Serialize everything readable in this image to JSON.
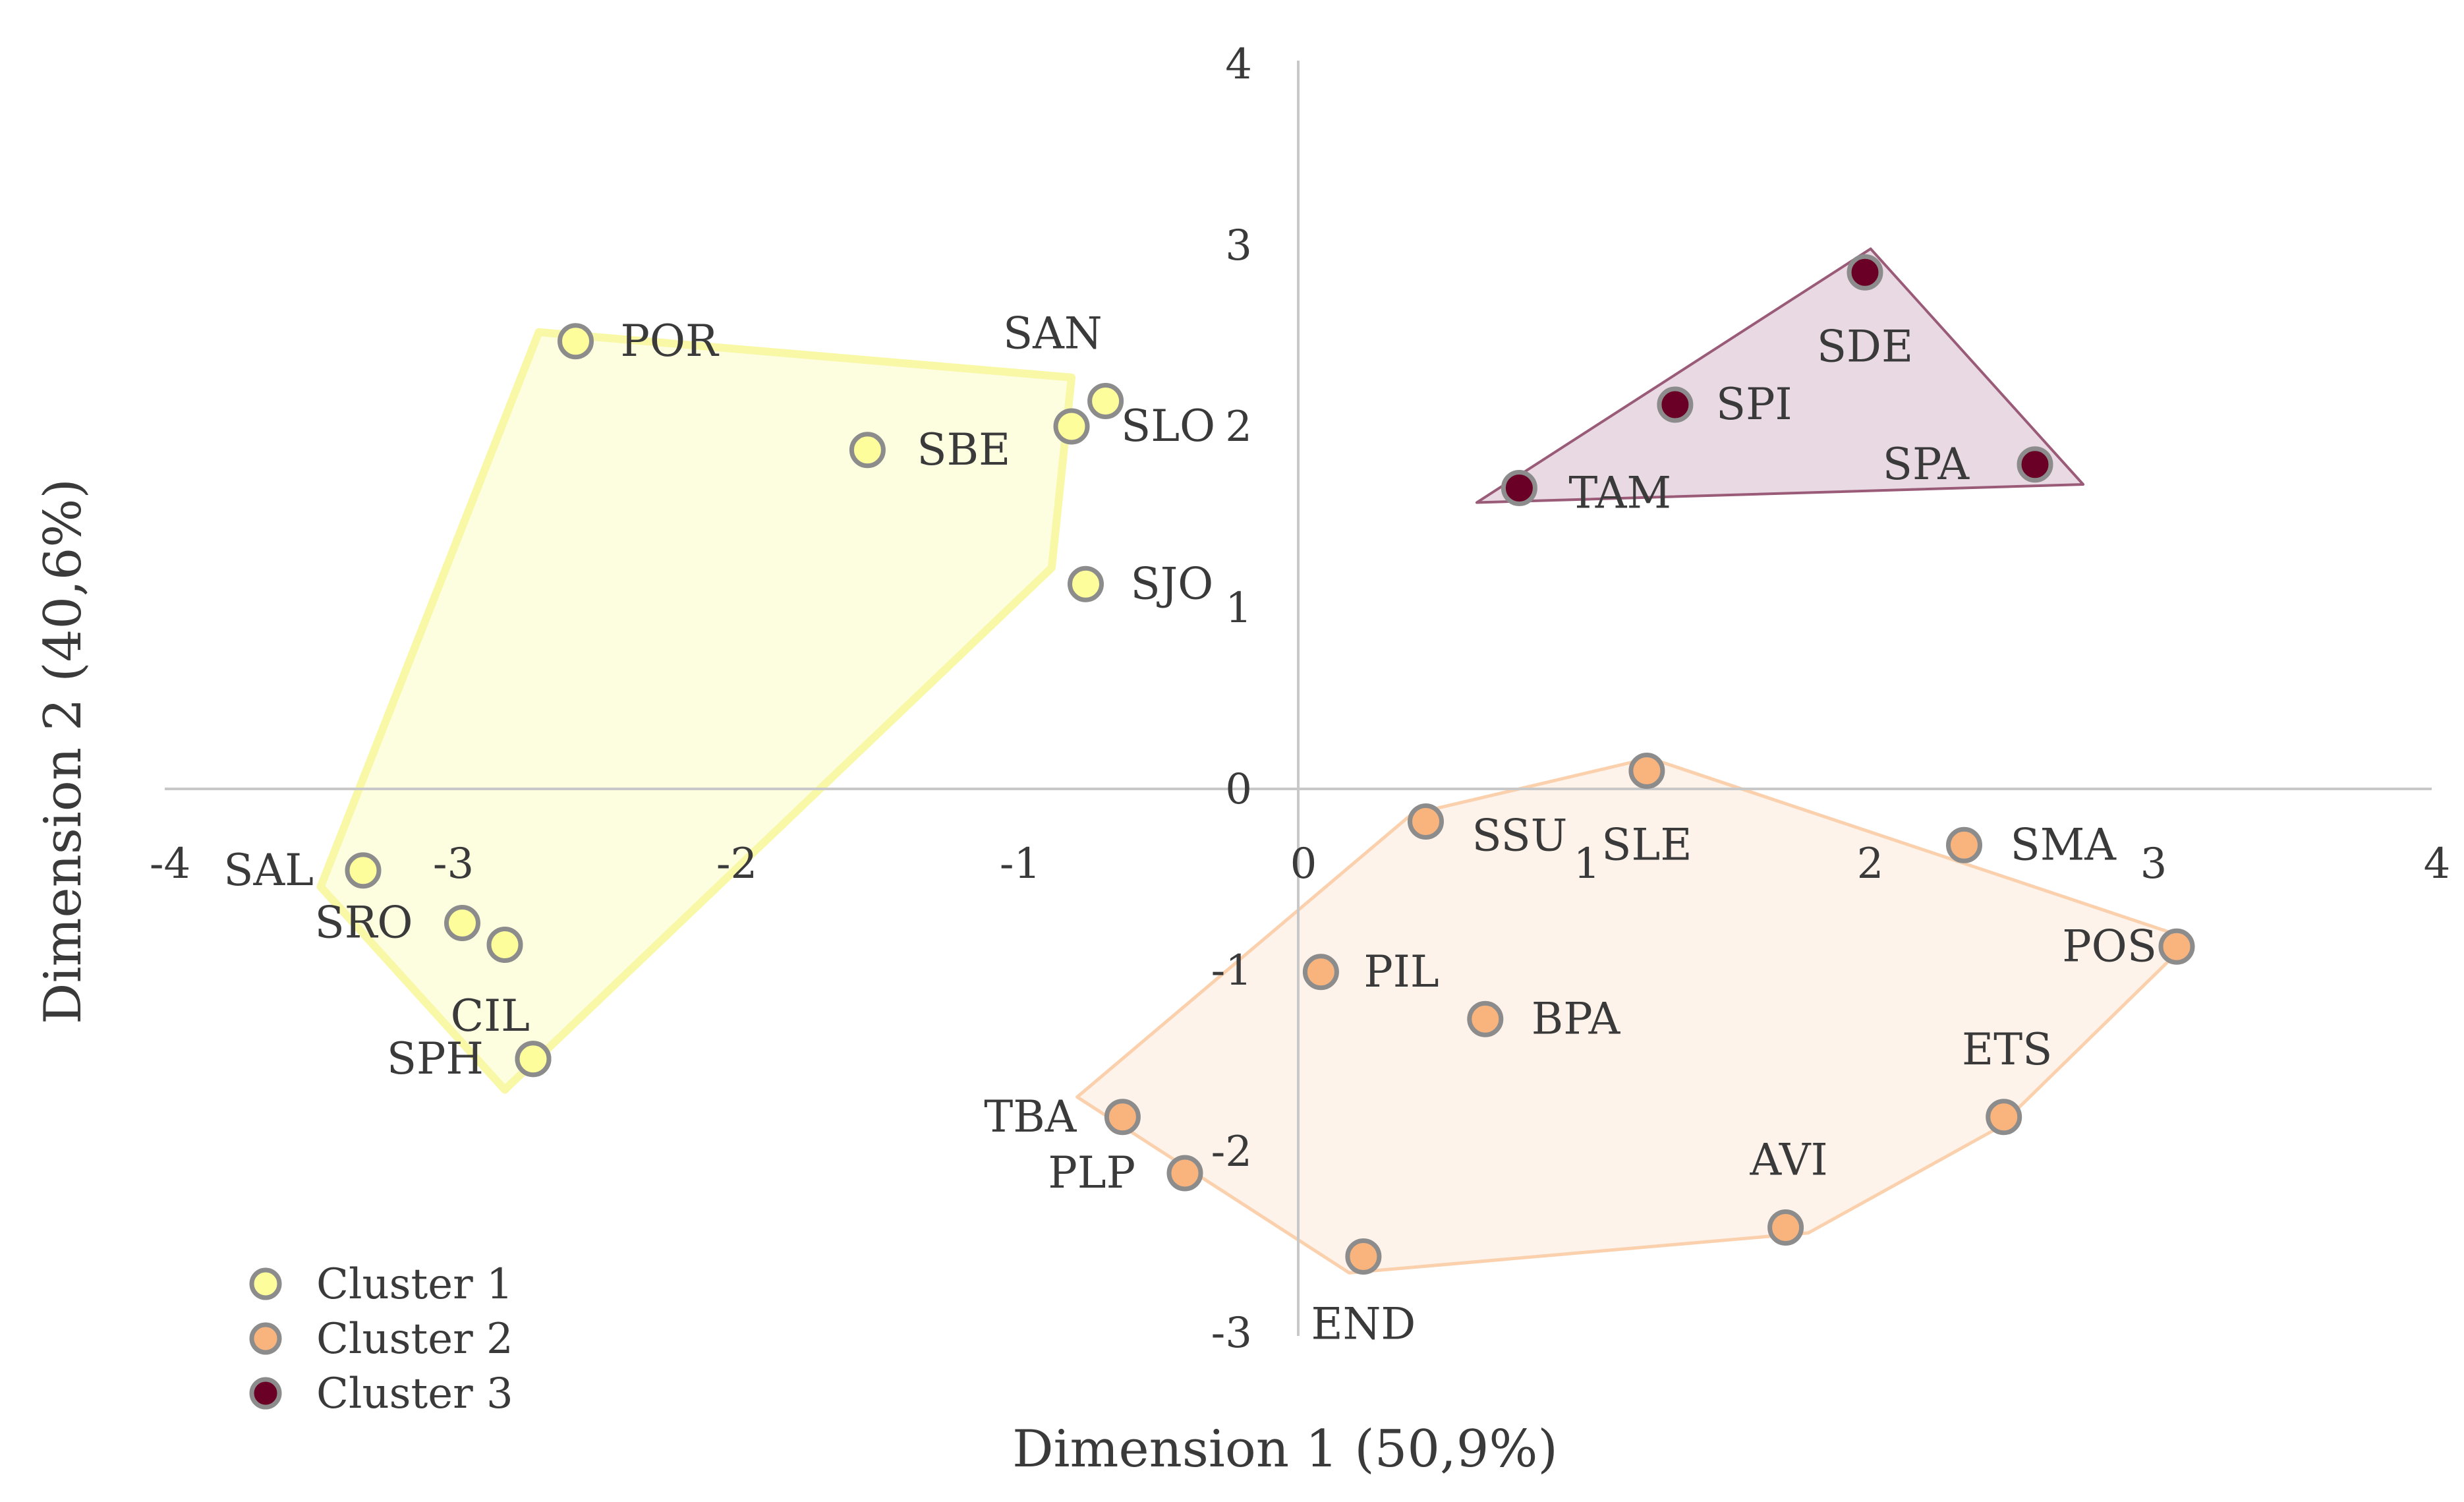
{
  "chart_data": {
    "type": "scatter",
    "title": "",
    "xlabel": "Dimension 1 (50,9%)",
    "ylabel": "Dimension 2 (40,6%)",
    "xlim": [
      -4,
      4
    ],
    "ylim": [
      -3,
      4
    ],
    "x_ticks": [
      "-4",
      "-3",
      "-2",
      "-1",
      "0",
      "1",
      "2",
      "3",
      "4"
    ],
    "y_ticks": [
      "-3",
      "-2",
      "-1",
      "0",
      "1",
      "2",
      "3",
      "4"
    ],
    "grid": false,
    "legend_position": "bottom-left",
    "colors": {
      "cluster1_fill": "#fdfd9c",
      "cluster1_hull": "#f8f8a6",
      "cluster2_fill": "#f9b47e",
      "cluster2_hull": "#fbd0ad",
      "cluster3_fill": "#6b0026",
      "cluster3_hull": "#e3cfdc",
      "marker_edge": "#8c8c8c"
    },
    "series": [
      {
        "name": "Cluster 1",
        "points": [
          {
            "label": "POR",
            "x": -2.55,
            "y": 2.47
          },
          {
            "label": "SAN",
            "x": -0.68,
            "y": 2.14
          },
          {
            "label": "SLO",
            "x": -0.8,
            "y": 2.0
          },
          {
            "label": "SBE",
            "x": -1.52,
            "y": 1.87
          },
          {
            "label": "SJO",
            "x": -0.75,
            "y": 1.13
          },
          {
            "label": "SAL",
            "x": -3.3,
            "y": -0.45
          },
          {
            "label": "SRO",
            "x": -2.95,
            "y": -0.74
          },
          {
            "label": "",
            "x": -2.8,
            "y": -0.86
          },
          {
            "label": "CIL",
            "x": -2.7,
            "y": -1.49
          },
          {
            "label": "SPH",
            "x": -2.7,
            "y": -1.49
          }
        ]
      },
      {
        "name": "Cluster 2",
        "points": [
          {
            "label": "SLE",
            "x": 1.23,
            "y": 0.1
          },
          {
            "label": "SSU",
            "x": 0.45,
            "y": -0.18
          },
          {
            "label": "SMA",
            "x": 2.35,
            "y": -0.31
          },
          {
            "label": "POS",
            "x": 3.1,
            "y": -0.87
          },
          {
            "label": "PIL",
            "x": 0.08,
            "y": -1.01
          },
          {
            "label": "BPA",
            "x": 0.66,
            "y": -1.27
          },
          {
            "label": "ETS",
            "x": 2.49,
            "y": -1.81
          },
          {
            "label": "TBA",
            "x": -0.62,
            "y": -1.81
          },
          {
            "label": "PLP",
            "x": -0.4,
            "y": -2.12
          },
          {
            "label": "AVI",
            "x": 1.72,
            "y": -2.42
          },
          {
            "label": "END",
            "x": 0.23,
            "y": -2.58
          }
        ]
      },
      {
        "name": "Cluster 3",
        "points": [
          {
            "label": "SDE",
            "x": 2.0,
            "y": 2.85
          },
          {
            "label": "SPI",
            "x": 1.33,
            "y": 2.12
          },
          {
            "label": "SPA",
            "x": 2.6,
            "y": 1.79
          },
          {
            "label": "TAM",
            "x": 0.78,
            "y": 1.66
          }
        ]
      }
    ]
  }
}
